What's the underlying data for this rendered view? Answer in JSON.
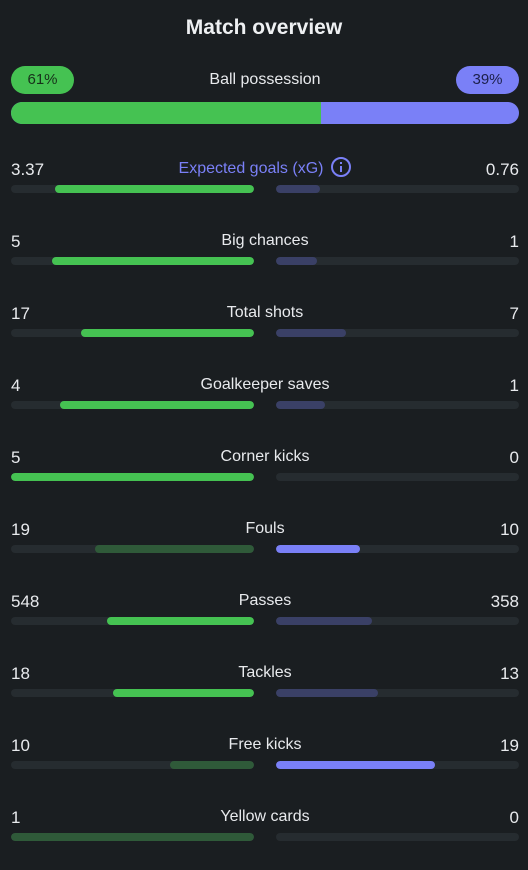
{
  "title": "Match overview",
  "possession": {
    "label": "Ball possession",
    "home_text": "61%",
    "away_text": "39%",
    "home_fraction": 0.61,
    "home_color": "#45c252",
    "away_color": "#7a80f7"
  },
  "stats": [
    {
      "label": "Expected goals (xG)",
      "home": "3.37",
      "away": "0.76",
      "home_fill": 0.82,
      "away_fill": 0.18,
      "winner": "home",
      "info_icon": "info-icon"
    },
    {
      "label": "Big chances",
      "home": "5",
      "away": "1",
      "home_fill": 0.83,
      "away_fill": 0.17,
      "winner": "home"
    },
    {
      "label": "Total shots",
      "home": "17",
      "away": "7",
      "home_fill": 0.71,
      "away_fill": 0.29,
      "winner": "home"
    },
    {
      "label": "Goalkeeper saves",
      "home": "4",
      "away": "1",
      "home_fill": 0.8,
      "away_fill": 0.2,
      "winner": "home"
    },
    {
      "label": "Corner kicks",
      "home": "5",
      "away": "0",
      "home_fill": 1.0,
      "away_fill": 0.0,
      "winner": "home"
    },
    {
      "label": "Fouls",
      "home": "19",
      "away": "10",
      "home_fill": 0.655,
      "away_fill": 0.345,
      "winner": "away"
    },
    {
      "label": "Passes",
      "home": "548",
      "away": "358",
      "home_fill": 0.605,
      "away_fill": 0.395,
      "winner": "home"
    },
    {
      "label": "Tackles",
      "home": "18",
      "away": "13",
      "home_fill": 0.58,
      "away_fill": 0.42,
      "winner": "home"
    },
    {
      "label": "Free kicks",
      "home": "10",
      "away": "19",
      "home_fill": 0.345,
      "away_fill": 0.655,
      "winner": "away"
    },
    {
      "label": "Yellow cards",
      "home": "1",
      "away": "0",
      "home_fill": 1.0,
      "away_fill": 0.0,
      "winner": "away"
    }
  ]
}
